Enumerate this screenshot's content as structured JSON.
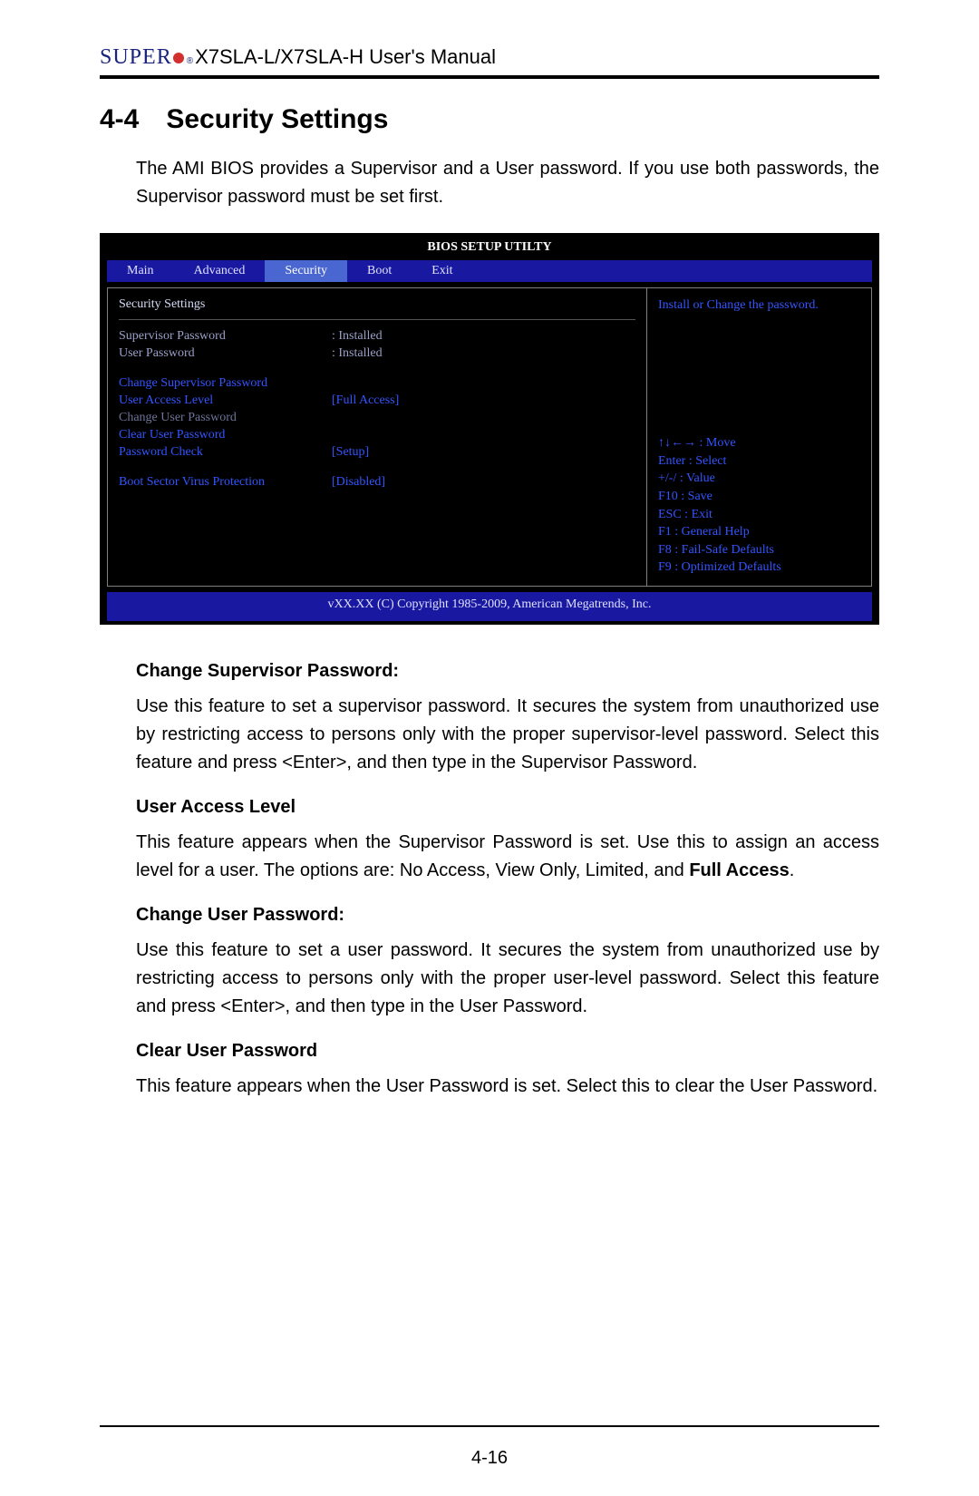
{
  "header": {
    "brand_caps": "SUPER",
    "product": "X7SLA-L/X7SLA-H User's Manual"
  },
  "section": {
    "number": "4-4",
    "title": "Security Settings",
    "intro": "The AMI BIOS provides a Supervisor and a User password. If you use both passwords, the Supervisor password must be set first."
  },
  "bios": {
    "title": "BIOS SETUP UTILTY",
    "tabs": [
      "Main",
      "Advanced",
      "Security",
      "Boot",
      "Exit"
    ],
    "active_tab_index": 2,
    "panel_heading": "Security Settings",
    "status_rows": [
      {
        "label": "Supervisor Password",
        "value": ": Installed"
      },
      {
        "label": "User Password",
        "value": ": Installed"
      }
    ],
    "option_rows": [
      {
        "label": "Change Supervisor Password",
        "value": "",
        "style": "blue"
      },
      {
        "label": "User Access Level",
        "value": "[Full Access]",
        "style": "blue"
      },
      {
        "label": "Change User Password",
        "value": "",
        "style": "dim"
      },
      {
        "label": "Clear User Password",
        "value": "",
        "style": "blue"
      },
      {
        "label": "Password Check",
        "value": "[Setup]",
        "style": "blue"
      }
    ],
    "extra_row": {
      "label": "Boot Sector Virus Protection",
      "value": "[Disabled]",
      "style": "blue"
    },
    "help_text": "Install or Change the password.",
    "key_hints": [
      "↑↓←→ : Move",
      "Enter : Select",
      "+/-/ : Value",
      "F10 : Save",
      "ESC : Exit",
      "F1 : General Help",
      "F8 : Fail-Safe Defaults",
      "F9 : Optimized Defaults"
    ],
    "footer": "vXX.XX (C) Copyright 1985-2009, American Megatrends, Inc."
  },
  "subsections": [
    {
      "heading": "Change Supervisor Password:",
      "body_html": "Use this feature to set a supervisor password. It secures the system from unauthorized use by restricting access to persons only with the proper supervisor-level password.  Select this feature and press <Enter>, and then type in the Supervisor Password."
    },
    {
      "heading": "User Access Level",
      "body_html": "This feature appears when the Supervisor Password is set. Use this to assign an access level for a user. The options are: No Access, View Only, Limited, and <b>Full Access</b>."
    },
    {
      "heading": "Change User Password:",
      "body_html": "Use this feature to set a user password. It secures the system from unauthorized use by restricting access to persons only with the proper user-level password.  Select this feature and press <Enter>, and then type in the User Password."
    },
    {
      "heading": "Clear User Password",
      "body_html": "This feature appears when the User Password is set. Select this to clear the User Password."
    }
  ],
  "page_number": "4-16",
  "colors": {
    "brand_blue": "#1a237e",
    "brand_red": "#d32f2f",
    "bios_bg": "#000000",
    "bios_bar": "#1818a0",
    "bios_active": "#4a66d0",
    "bios_blue_text": "#3355ff",
    "bios_dim_text": "#6e7498"
  }
}
